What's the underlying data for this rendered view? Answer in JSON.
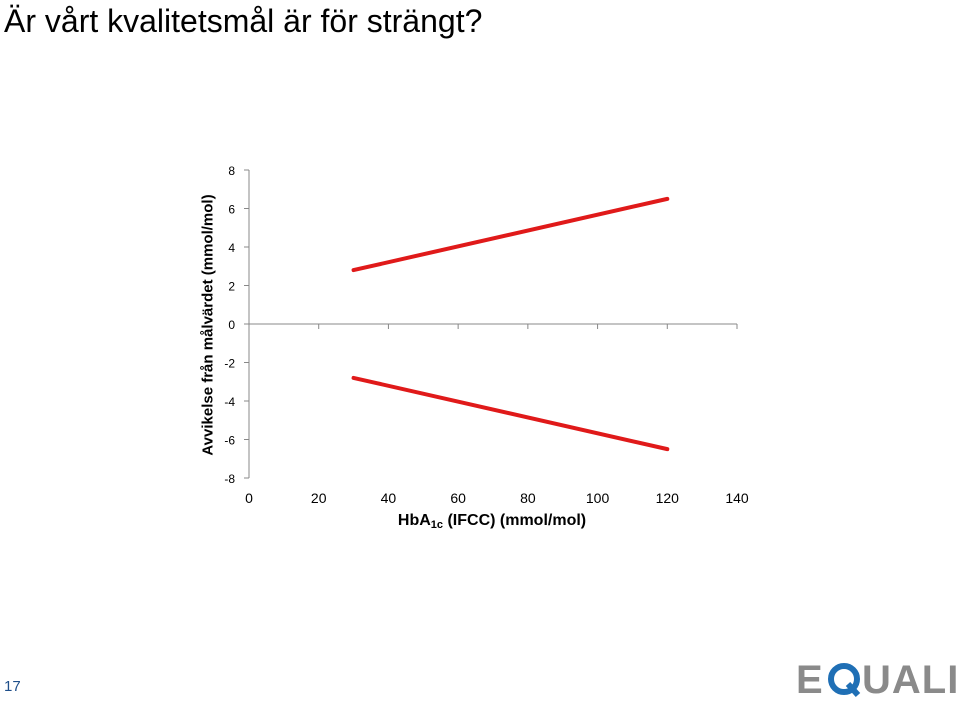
{
  "slide": {
    "title": "Är vårt kvalitetsmål är för strängt?",
    "page_number": "17",
    "logo_text": "EQUALIS"
  },
  "chart_data": {
    "type": "line",
    "title": "",
    "xlabel_main": "HbA",
    "xlabel_sub": "1c",
    "xlabel_rest": " (IFCC) (mmol/mol)",
    "ylabel": "Avvikelse från målvärdet (mmol/mol)",
    "xlim": [
      0,
      140
    ],
    "ylim": [
      -8,
      8
    ],
    "x_ticks": [
      0,
      20,
      40,
      60,
      80,
      100,
      120,
      140
    ],
    "y_ticks": [
      8,
      6,
      4,
      2,
      0,
      -2,
      -4,
      -6,
      -8
    ],
    "grid": false,
    "color": "#e01a1a",
    "series": [
      {
        "x": [
          30,
          120
        ],
        "y": [
          2.8,
          6.5
        ]
      },
      {
        "x": [
          30,
          120
        ],
        "y": [
          -2.8,
          -6.5
        ]
      }
    ]
  }
}
